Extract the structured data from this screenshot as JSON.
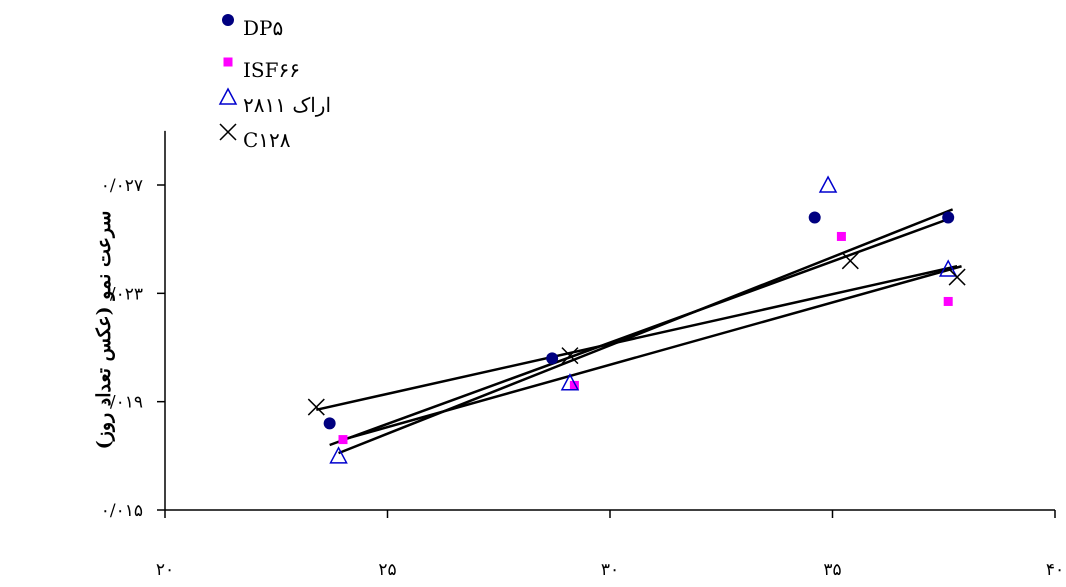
{
  "chart_data": {
    "type": "scatter",
    "title": "",
    "xlabel": "",
    "ylabel": "سرعت نمو (عکس تعداد روز)",
    "xlim": [
      20,
      40
    ],
    "ylim": [
      0.015,
      0.029
    ],
    "x_ticks": [
      20,
      25,
      30,
      35,
      40
    ],
    "x_tick_labels": [
      "۲۰",
      "۲۵",
      "۳۰",
      "۳۵",
      "۴۰"
    ],
    "y_ticks": [
      0.015,
      0.019,
      0.023,
      0.027
    ],
    "y_tick_labels": [
      "۰/۰۱۵",
      "۰/۰۱۹",
      "۰/۰۲۳",
      "۰/۰۲۷"
    ],
    "grid": false,
    "legend_position": "top-left",
    "series": [
      {
        "name": "DP۵",
        "marker": "circle",
        "color": "#000080",
        "points": [
          [
            23.7,
            0.0182
          ],
          [
            28.7,
            0.0206
          ],
          [
            34.6,
            0.0258
          ],
          [
            37.6,
            0.0258
          ]
        ],
        "trend": [
          [
            23.7,
            0.0174
          ],
          [
            37.7,
            0.0258
          ]
        ]
      },
      {
        "name": "ISF۶۶",
        "marker": "square",
        "color": "#ff00ff",
        "points": [
          [
            24.0,
            0.0176
          ],
          [
            29.2,
            0.0196
          ],
          [
            35.2,
            0.0251
          ],
          [
            37.6,
            0.0227
          ]
        ],
        "trend": [
          [
            24.0,
            0.0176
          ],
          [
            37.9,
            0.024
          ]
        ]
      },
      {
        "name": "اراک ۲۸۱۱",
        "marker": "triangle",
        "color": "#0000cd",
        "points": [
          [
            23.9,
            0.017
          ],
          [
            29.1,
            0.0197
          ],
          [
            34.9,
            0.027
          ],
          [
            37.6,
            0.0239
          ]
        ],
        "trend": [
          [
            23.9,
            0.0171
          ],
          [
            37.7,
            0.0261
          ]
        ]
      },
      {
        "name": "C۱۲۸",
        "marker": "cross",
        "color": "#000000",
        "points": [
          [
            23.4,
            0.0188
          ],
          [
            29.1,
            0.0207
          ],
          [
            35.4,
            0.0242
          ],
          [
            37.8,
            0.0236
          ]
        ],
        "trend": [
          [
            23.4,
            0.0187
          ],
          [
            37.8,
            0.024
          ]
        ]
      }
    ]
  }
}
